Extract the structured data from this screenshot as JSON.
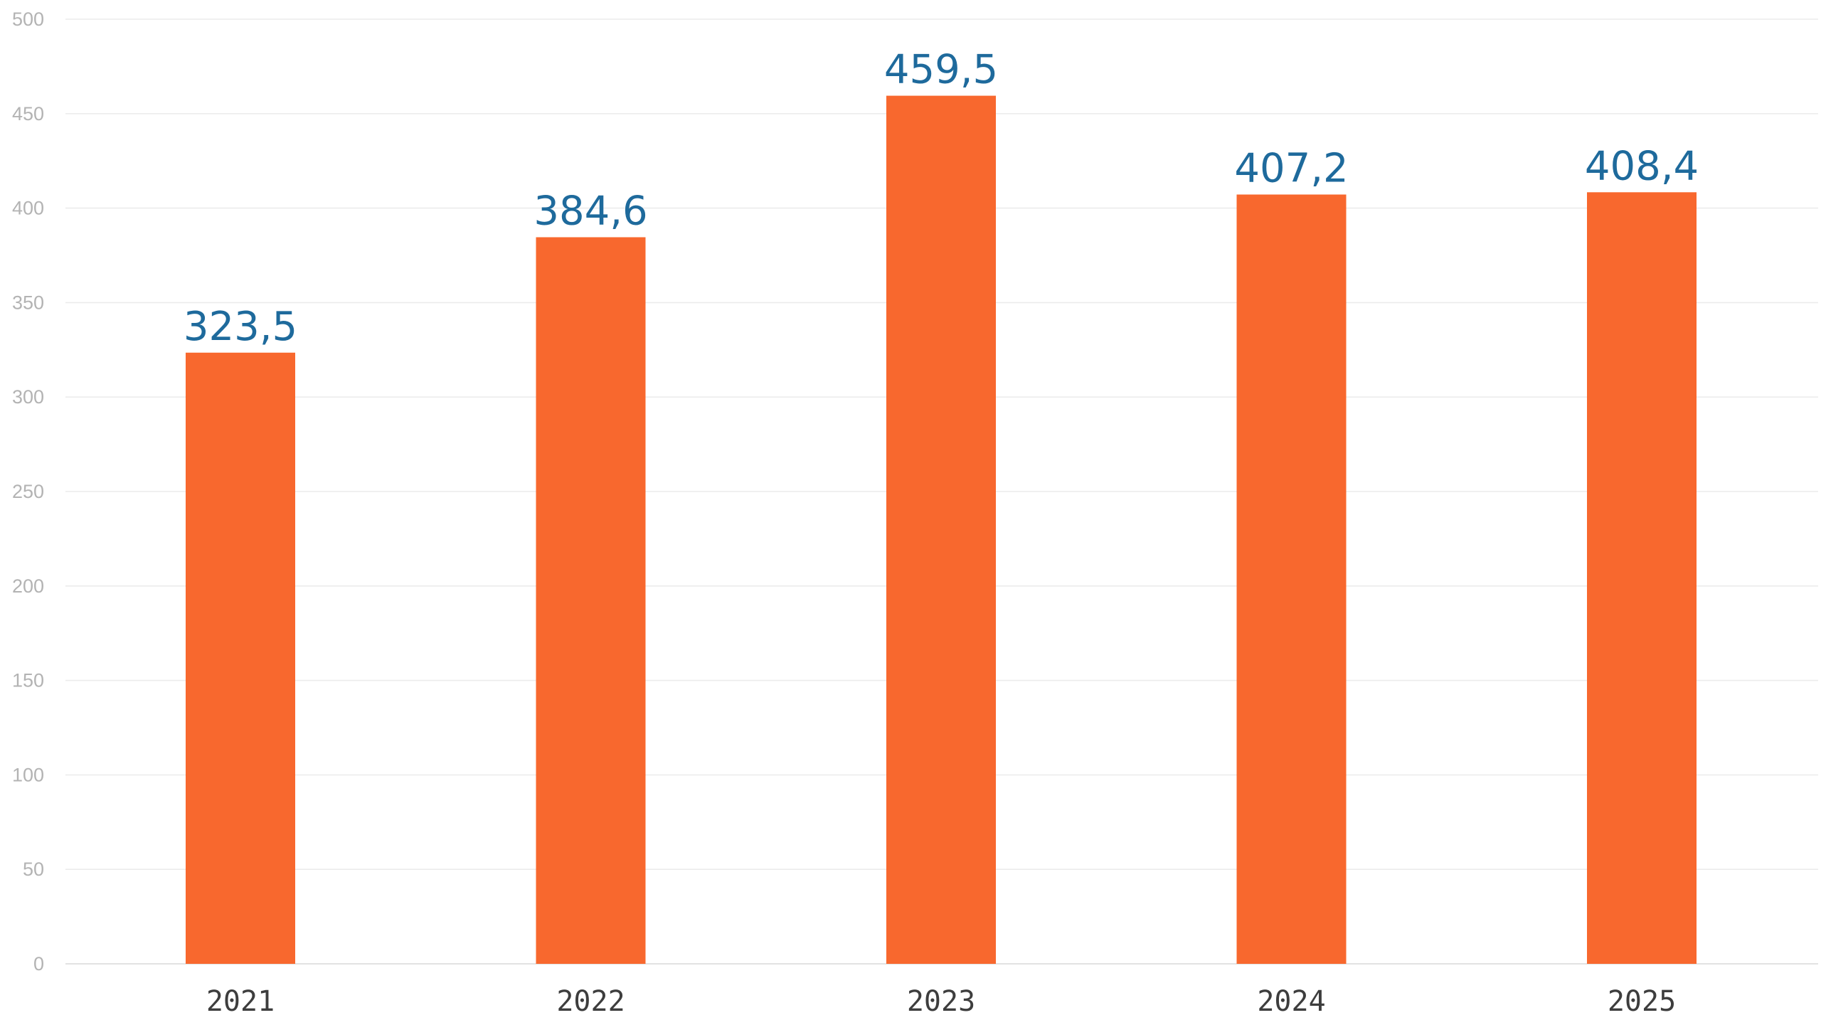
{
  "chart_data": {
    "type": "bar",
    "title": "",
    "xlabel": "",
    "ylabel": "",
    "categories": [
      "2021",
      "2022",
      "2023",
      "2024",
      "2025"
    ],
    "values": [
      323.5,
      384.6,
      459.5,
      407.2,
      408.4
    ],
    "value_labels": [
      "323,5",
      "384,6",
      "459,5",
      "407,2",
      "408,4"
    ],
    "ylim": [
      0,
      500
    ],
    "y_ticks": [
      0,
      50,
      100,
      150,
      200,
      250,
      300,
      350,
      400,
      450,
      500
    ],
    "y_tick_labels": [
      "0",
      "50",
      "100",
      "150",
      "200",
      "250",
      "300",
      "350",
      "400",
      "450",
      "500"
    ],
    "grid": true,
    "legend": "none",
    "colors": {
      "bar": "#f8682e",
      "data_label": "#1e6a9c",
      "grid": "#ececec",
      "y_tick_text": "#b3b3b3",
      "x_tick_text": "#3d3d3d"
    }
  }
}
